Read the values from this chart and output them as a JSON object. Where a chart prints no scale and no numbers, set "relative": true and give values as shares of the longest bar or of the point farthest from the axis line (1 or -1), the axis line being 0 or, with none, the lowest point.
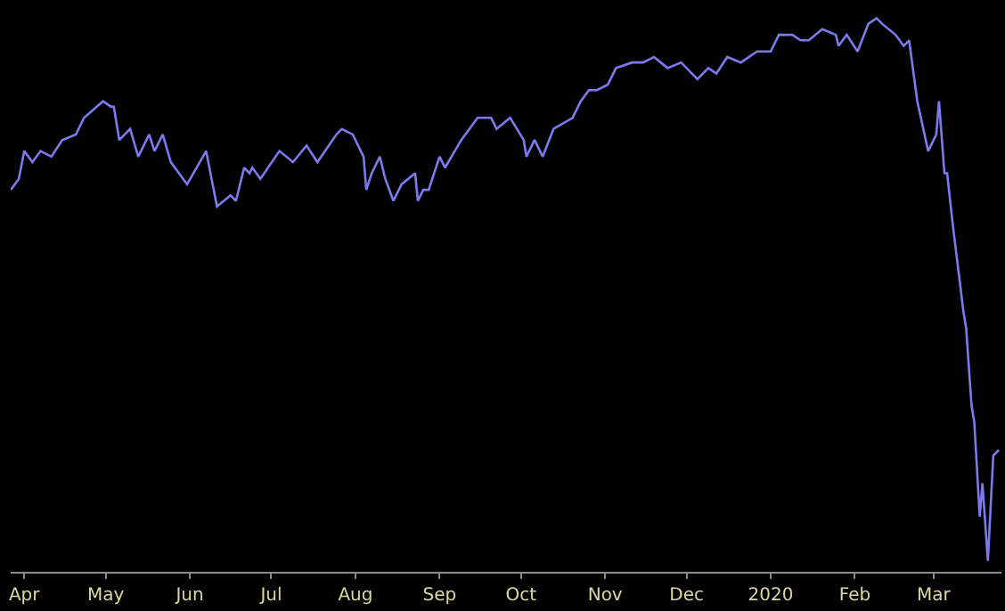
{
  "chart_data": {
    "type": "line",
    "relative": true,
    "grid": false,
    "marker": "none",
    "line_style": "solid",
    "x": [
      "2019-03-27",
      "2019-03-30",
      "2019-04-01",
      "2019-04-04",
      "2019-04-07",
      "2019-04-11",
      "2019-04-15",
      "2019-04-20",
      "2019-04-23",
      "2019-04-30",
      "2019-05-03",
      "2019-05-04",
      "2019-05-06",
      "2019-05-10",
      "2019-05-13",
      "2019-05-17",
      "2019-05-19",
      "2019-05-22",
      "2019-05-25",
      "2019-05-31",
      "2019-06-07",
      "2019-06-11",
      "2019-06-16",
      "2019-06-18",
      "2019-06-21",
      "2019-06-23",
      "2019-06-24",
      "2019-06-27",
      "2019-07-04",
      "2019-07-09",
      "2019-07-14",
      "2019-07-18",
      "2019-07-25",
      "2019-07-27",
      "2019-07-31",
      "2019-08-04",
      "2019-08-05",
      "2019-08-07",
      "2019-08-10",
      "2019-08-12",
      "2019-08-15",
      "2019-08-18",
      "2019-08-23",
      "2019-08-24",
      "2019-08-26",
      "2019-08-28",
      "2019-09-01",
      "2019-09-03",
      "2019-09-09",
      "2019-09-15",
      "2019-09-20",
      "2019-09-22",
      "2019-09-27",
      "2019-10-02",
      "2019-10-03",
      "2019-10-06",
      "2019-10-09",
      "2019-10-13",
      "2019-10-20",
      "2019-10-23",
      "2019-10-26",
      "2019-10-29",
      "2019-11-02",
      "2019-11-05",
      "2019-11-11",
      "2019-11-15",
      "2019-11-19",
      "2019-11-24",
      "2019-11-29",
      "2019-12-05",
      "2019-12-09",
      "2019-12-12",
      "2019-12-16",
      "2019-12-21",
      "2019-12-27",
      "2020-01-01",
      "2020-01-04",
      "2020-01-09",
      "2020-01-12",
      "2020-01-15",
      "2020-01-20",
      "2020-01-25",
      "2020-01-26",
      "2020-01-29",
      "2020-02-02",
      "2020-02-06",
      "2020-02-09",
      "2020-02-11",
      "2020-02-16",
      "2020-02-19",
      "2020-02-21",
      "2020-02-24",
      "2020-02-28",
      "2020-03-02",
      "2020-03-03",
      "2020-03-05",
      "2020-03-06",
      "2020-03-08",
      "2020-03-09",
      "2020-03-12",
      "2020-03-13",
      "2020-03-15",
      "2020-03-16",
      "2020-03-18",
      "2020-03-19",
      "2020-03-21",
      "2020-03-23",
      "2020-03-25"
    ],
    "series": [
      {
        "color": "#7b7bee",
        "values": [
          0.69,
          0.71,
          0.76,
          0.74,
          0.76,
          0.75,
          0.78,
          0.79,
          0.82,
          0.85,
          0.84,
          0.84,
          0.78,
          0.8,
          0.75,
          0.79,
          0.76,
          0.79,
          0.74,
          0.7,
          0.76,
          0.66,
          0.68,
          0.67,
          0.73,
          0.72,
          0.73,
          0.71,
          0.76,
          0.74,
          0.77,
          0.74,
          0.79,
          0.8,
          0.79,
          0.75,
          0.69,
          0.72,
          0.75,
          0.71,
          0.67,
          0.7,
          0.72,
          0.67,
          0.69,
          0.69,
          0.75,
          0.73,
          0.78,
          0.82,
          0.82,
          0.8,
          0.82,
          0.78,
          0.75,
          0.78,
          0.75,
          0.8,
          0.82,
          0.85,
          0.87,
          0.87,
          0.88,
          0.91,
          0.92,
          0.92,
          0.93,
          0.91,
          0.92,
          0.89,
          0.91,
          0.9,
          0.93,
          0.92,
          0.94,
          0.94,
          0.97,
          0.97,
          0.96,
          0.96,
          0.98,
          0.97,
          0.95,
          0.97,
          0.94,
          0.99,
          1,
          0.99,
          0.97,
          0.95,
          0.96,
          0.85,
          0.76,
          0.79,
          0.85,
          0.72,
          0.72,
          0.63,
          0.59,
          0.47,
          0.44,
          0.3,
          0.27,
          0.1,
          0.16,
          0.02,
          0.21,
          0.22
        ]
      }
    ],
    "xlim": [
      "2019-03-27",
      "2020-03-26"
    ],
    "xticks": [
      {
        "value": "2019-04-01",
        "label": "Apr"
      },
      {
        "value": "2019-05-01",
        "label": "May"
      },
      {
        "value": "2019-06-01",
        "label": "Jun"
      },
      {
        "value": "2019-07-01",
        "label": "Jul"
      },
      {
        "value": "2019-08-01",
        "label": "Aug"
      },
      {
        "value": "2019-09-01",
        "label": "Sep"
      },
      {
        "value": "2019-10-01",
        "label": "Oct"
      },
      {
        "value": "2019-11-01",
        "label": "Nov"
      },
      {
        "value": "2019-12-01",
        "label": "Dec"
      },
      {
        "value": "2020-01-01",
        "label": "2020"
      },
      {
        "value": "2020-02-01",
        "label": "Feb"
      },
      {
        "value": "2020-03-01",
        "label": "Mar"
      }
    ]
  }
}
